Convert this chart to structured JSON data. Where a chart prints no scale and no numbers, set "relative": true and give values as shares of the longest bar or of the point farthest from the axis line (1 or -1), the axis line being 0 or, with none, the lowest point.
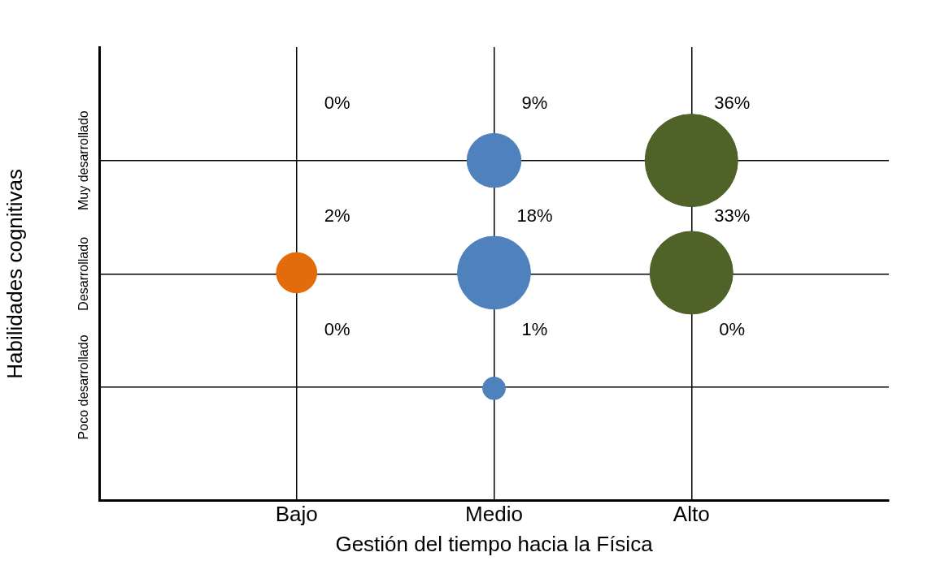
{
  "chart_data": {
    "type": "bubble",
    "xlabel": "Gestión del tiempo hacia la Física",
    "ylabel": "Habilidades cognitivas",
    "categories": [
      "Bajo",
      "Medio",
      "Alto"
    ],
    "y_categories": [
      "Muy desarrollado",
      "Desarrollado",
      "Poco desarrollado"
    ],
    "relative": true,
    "grid": true,
    "legend": false,
    "series": [
      {
        "color": "#e36c0a",
        "x": [
          "Bajo"
        ],
        "values": [
          0.67
        ],
        "sizes": [
          0.19
        ]
      },
      {
        "color": "#4f81bd",
        "x": [
          "Medio",
          "Medio",
          "Medio"
        ],
        "values": [
          1,
          0.67,
          0.33
        ],
        "sizes": [
          0.34,
          0.62,
          0.06
        ]
      },
      {
        "color": "#4f6228",
        "x": [
          "Alto",
          "Alto"
        ],
        "values": [
          1,
          0.67
        ],
        "sizes": [
          1,
          0.8
        ]
      }
    ],
    "annotations": [
      "0%",
      "9%",
      "36%",
      "2%",
      "18%",
      "33%",
      "0%",
      "1%",
      "0%"
    ]
  }
}
